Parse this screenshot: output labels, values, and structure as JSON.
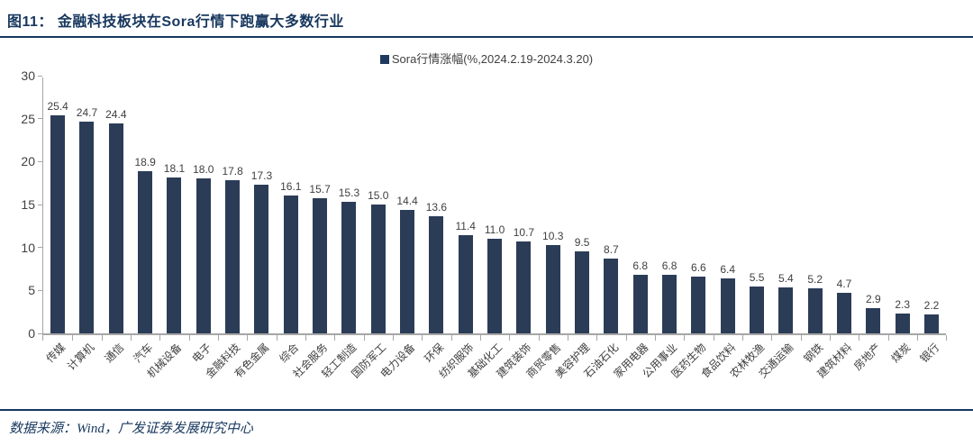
{
  "header": {
    "title": "图11：  金融科技板块在Sora行情下跑赢大多数行业"
  },
  "footer": {
    "source": "数据来源：Wind，广发证券发展研究中心"
  },
  "colors": {
    "bar": "#2b3c57",
    "accent_navy": "#17375e",
    "axis_gray": "#a6a6a6",
    "label_text": "#404040"
  },
  "chart_data": {
    "type": "bar",
    "legend": "Sora行情涨幅(%,2024.2.19-2024.3.20)",
    "legend_position": "top-center",
    "grid": false,
    "ylim": [
      0,
      30
    ],
    "yticks": [
      0,
      5,
      10,
      15,
      20,
      25,
      30
    ],
    "xlabel": "",
    "ylabel": "",
    "categories": [
      "传媒",
      "计算机",
      "通信",
      "汽车",
      "机械设备",
      "电子",
      "金融科技",
      "有色金属",
      "综合",
      "社会服务",
      "轻工制造",
      "国防军工",
      "电力设备",
      "环保",
      "纺织服饰",
      "基础化工",
      "建筑装饰",
      "商贸零售",
      "美容护理",
      "石油石化",
      "家用电器",
      "公用事业",
      "医药生物",
      "食品饮料",
      "农林牧渔",
      "交通运输",
      "钢铁",
      "建筑材料",
      "房地产",
      "煤炭",
      "银行"
    ],
    "values": [
      25.4,
      24.7,
      24.4,
      18.9,
      18.1,
      18.0,
      17.8,
      17.3,
      16.1,
      15.7,
      15.3,
      15.0,
      14.4,
      13.6,
      11.4,
      11.0,
      10.7,
      10.3,
      9.5,
      8.7,
      6.8,
      6.8,
      6.6,
      6.4,
      5.5,
      5.4,
      5.2,
      4.7,
      2.9,
      2.3,
      2.2
    ],
    "value_labels_shown": true
  }
}
